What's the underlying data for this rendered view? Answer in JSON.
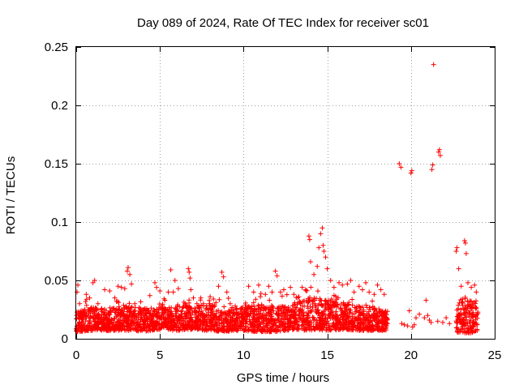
{
  "chart_data": {
    "type": "scatter",
    "title": "Day 089 of 2024, Rate Of TEC Index for receiver sc01",
    "xlabel": "GPS time / hours",
    "ylabel": "ROTI / TECUs",
    "xlim": [
      0,
      25
    ],
    "ylim": [
      0,
      0.25
    ],
    "grid": true,
    "marker": "+",
    "color": "#ff0000",
    "x_ticks": [
      0,
      5,
      10,
      15,
      20,
      25
    ],
    "x_tick_labels": [
      "0",
      "5",
      "10",
      "15",
      "20",
      "25"
    ],
    "y_ticks": [
      0,
      0.05,
      0.1,
      0.15,
      0.2,
      0.25
    ],
    "y_tick_labels": [
      "0",
      "0.05",
      "0.1",
      "0.15",
      "0.2",
      "0.25"
    ],
    "series": [
      {
        "name": "ROTI",
        "points": [
          [
            0.05,
            0.04
          ],
          [
            0.1,
            0.046
          ],
          [
            0.2,
            0.03
          ],
          [
            0.3,
            0.022
          ],
          [
            0.6,
            0.038
          ],
          [
            0.8,
            0.035
          ],
          [
            1.0,
            0.048
          ],
          [
            1.1,
            0.05
          ],
          [
            1.3,
            0.03
          ],
          [
            1.7,
            0.042
          ],
          [
            2.0,
            0.041
          ],
          [
            2.3,
            0.035
          ],
          [
            2.4,
            0.032
          ],
          [
            2.5,
            0.045
          ],
          [
            2.7,
            0.044
          ],
          [
            2.9,
            0.043
          ],
          [
            3.05,
            0.058
          ],
          [
            3.1,
            0.061
          ],
          [
            3.2,
            0.055
          ],
          [
            3.3,
            0.047
          ],
          [
            3.5,
            0.03
          ],
          [
            4.0,
            0.025
          ],
          [
            4.4,
            0.037
          ],
          [
            4.7,
            0.048
          ],
          [
            4.8,
            0.044
          ],
          [
            5.0,
            0.041
          ],
          [
            5.3,
            0.033
          ],
          [
            5.5,
            0.04
          ],
          [
            5.65,
            0.059
          ],
          [
            5.8,
            0.04
          ],
          [
            5.9,
            0.05
          ],
          [
            6.1,
            0.043
          ],
          [
            6.5,
            0.03
          ],
          [
            6.7,
            0.06
          ],
          [
            6.75,
            0.057
          ],
          [
            6.8,
            0.052
          ],
          [
            6.85,
            0.042
          ],
          [
            7.0,
            0.035
          ],
          [
            7.3,
            0.027
          ],
          [
            7.6,
            0.03
          ],
          [
            8.0,
            0.036
          ],
          [
            8.2,
            0.034
          ],
          [
            8.5,
            0.045
          ],
          [
            8.7,
            0.057
          ],
          [
            8.8,
            0.053
          ],
          [
            9.0,
            0.04
          ],
          [
            9.2,
            0.03
          ],
          [
            9.5,
            0.028
          ],
          [
            9.8,
            0.023
          ],
          [
            10.1,
            0.029
          ],
          [
            10.3,
            0.045
          ],
          [
            10.6,
            0.04
          ],
          [
            10.9,
            0.046
          ],
          [
            11.0,
            0.036
          ],
          [
            11.3,
            0.038
          ],
          [
            11.5,
            0.045
          ],
          [
            11.7,
            0.04
          ],
          [
            11.9,
            0.058
          ],
          [
            12.0,
            0.054
          ],
          [
            12.2,
            0.04
          ],
          [
            12.4,
            0.042
          ],
          [
            12.8,
            0.044
          ],
          [
            13.0,
            0.038
          ],
          [
            13.3,
            0.036
          ],
          [
            13.5,
            0.044
          ],
          [
            13.7,
            0.042
          ],
          [
            13.9,
            0.088
          ],
          [
            13.95,
            0.085
          ],
          [
            14.0,
            0.066
          ],
          [
            14.2,
            0.055
          ],
          [
            14.4,
            0.062
          ],
          [
            14.5,
            0.078
          ],
          [
            14.6,
            0.09
          ],
          [
            14.7,
            0.095
          ],
          [
            14.75,
            0.08
          ],
          [
            14.8,
            0.075
          ],
          [
            14.9,
            0.07
          ],
          [
            15.0,
            0.06
          ],
          [
            15.2,
            0.05
          ],
          [
            15.4,
            0.044
          ],
          [
            15.7,
            0.048
          ],
          [
            15.9,
            0.046
          ],
          [
            16.2,
            0.047
          ],
          [
            16.4,
            0.05
          ],
          [
            16.6,
            0.04
          ],
          [
            16.9,
            0.045
          ],
          [
            17.1,
            0.042
          ],
          [
            17.3,
            0.048
          ],
          [
            17.5,
            0.04
          ],
          [
            17.8,
            0.038
          ],
          [
            18.0,
            0.046
          ],
          [
            18.2,
            0.042
          ],
          [
            18.4,
            0.038
          ],
          [
            19.3,
            0.15
          ],
          [
            19.4,
            0.147
          ],
          [
            19.45,
            0.013
          ],
          [
            19.6,
            0.012
          ],
          [
            19.8,
            0.011
          ],
          [
            19.9,
            0.024
          ],
          [
            20.0,
            0.142
          ],
          [
            20.05,
            0.144
          ],
          [
            20.1,
            0.01
          ],
          [
            20.2,
            0.012
          ],
          [
            20.3,
            0.018
          ],
          [
            20.5,
            0.021
          ],
          [
            20.8,
            0.018
          ],
          [
            20.9,
            0.033
          ],
          [
            21.0,
            0.02
          ],
          [
            21.1,
            0.016
          ],
          [
            21.2,
            0.014
          ],
          [
            21.25,
            0.145
          ],
          [
            21.3,
            0.149
          ],
          [
            21.35,
            0.235
          ],
          [
            21.6,
            0.015
          ],
          [
            21.65,
            0.16
          ],
          [
            21.7,
            0.162
          ],
          [
            21.75,
            0.157
          ],
          [
            21.9,
            0.014
          ],
          [
            22.1,
            0.018
          ],
          [
            22.3,
            0.013
          ],
          [
            22.7,
            0.075
          ],
          [
            22.75,
            0.078
          ],
          [
            22.85,
            0.06
          ],
          [
            23.0,
            0.045
          ],
          [
            23.2,
            0.084
          ],
          [
            23.25,
            0.082
          ],
          [
            23.3,
            0.073
          ],
          [
            23.4,
            0.048
          ],
          [
            23.6,
            0.044
          ],
          [
            23.8,
            0.046
          ],
          [
            23.9,
            0.04
          ]
        ],
        "dense_band": [
          [
            0.0,
            0.006,
            0.024
          ],
          [
            1.0,
            0.007,
            0.027
          ],
          [
            2.0,
            0.007,
            0.026
          ],
          [
            3.0,
            0.007,
            0.028
          ],
          [
            4.0,
            0.006,
            0.026
          ],
          [
            5.0,
            0.008,
            0.027
          ],
          [
            6.0,
            0.007,
            0.028
          ],
          [
            7.0,
            0.008,
            0.028
          ],
          [
            8.0,
            0.007,
            0.03
          ],
          [
            9.0,
            0.006,
            0.025
          ],
          [
            10.0,
            0.007,
            0.028
          ],
          [
            11.0,
            0.006,
            0.03
          ],
          [
            12.0,
            0.006,
            0.028
          ],
          [
            13.0,
            0.008,
            0.03
          ],
          [
            14.0,
            0.007,
            0.036
          ],
          [
            15.0,
            0.007,
            0.034
          ],
          [
            16.0,
            0.008,
            0.03
          ],
          [
            17.0,
            0.007,
            0.028
          ],
          [
            18.0,
            0.007,
            0.026
          ],
          [
            18.6,
            0.007,
            0.025
          ],
          [
            22.7,
            0.006,
            0.03
          ],
          [
            23.0,
            0.005,
            0.035
          ],
          [
            23.5,
            0.005,
            0.035
          ],
          [
            24.0,
            0.005,
            0.03
          ]
        ]
      }
    ]
  }
}
